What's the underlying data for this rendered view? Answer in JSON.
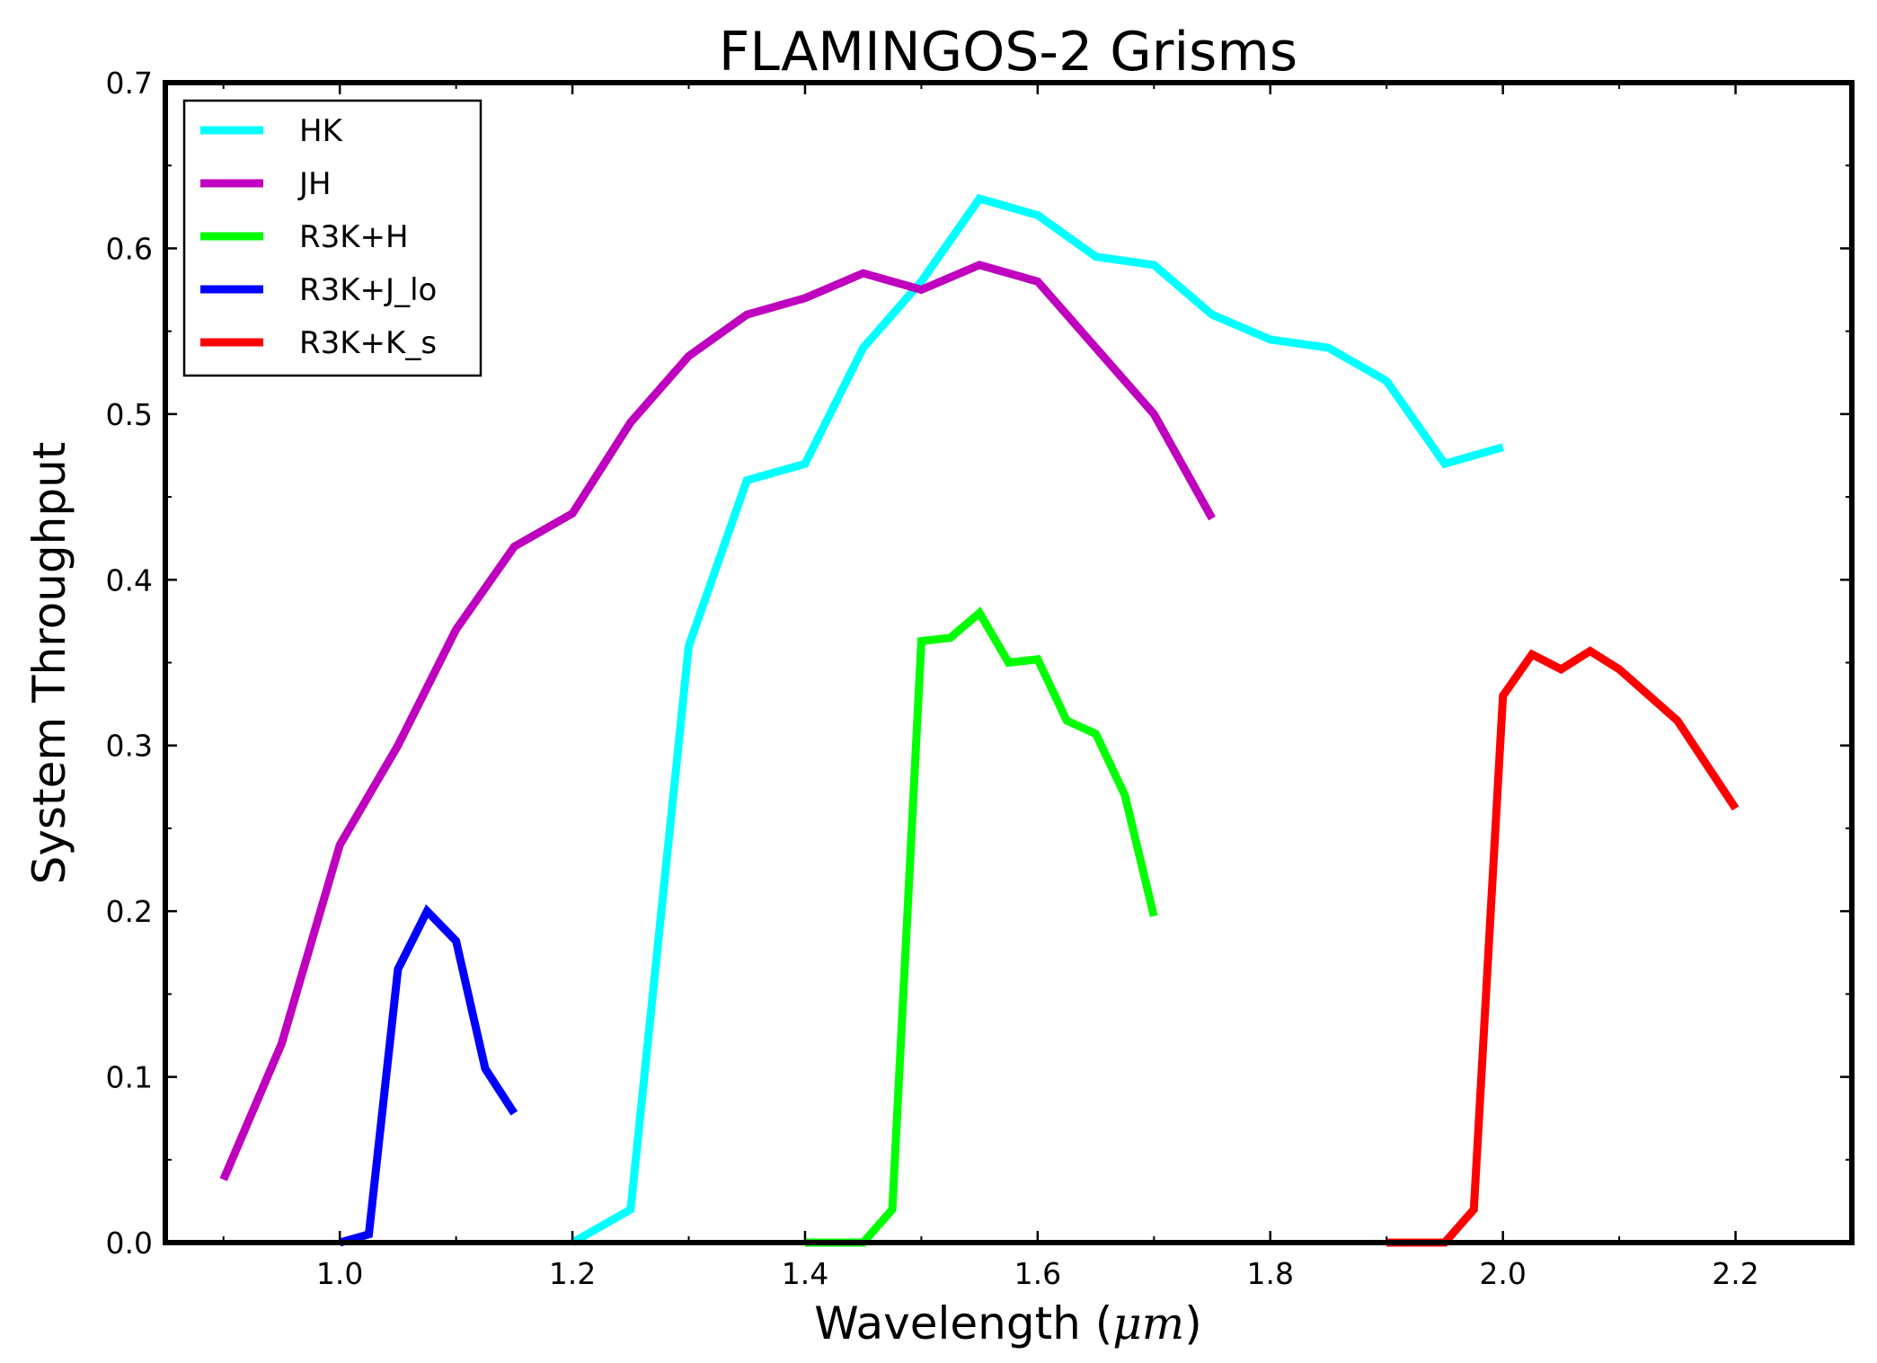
{
  "chart_data": {
    "type": "line",
    "title": "FLAMINGOS-2 Grisms",
    "xlabel_prefix": "Wavelength (",
    "xlabel_unit": "μm",
    "xlabel_suffix": ")",
    "ylabel": "System Throughput",
    "xlim": [
      0.85,
      2.3
    ],
    "ylim": [
      0.0,
      0.7
    ],
    "xticks": [
      1.0,
      1.2,
      1.4,
      1.6,
      1.8,
      2.0,
      2.2
    ],
    "xtick_labels": [
      "1.0",
      "1.2",
      "1.4",
      "1.6",
      "1.8",
      "2.0",
      "2.2"
    ],
    "yticks": [
      0.0,
      0.1,
      0.2,
      0.3,
      0.4,
      0.5,
      0.6,
      0.7
    ],
    "ytick_labels": [
      "0.0",
      "0.1",
      "0.2",
      "0.3",
      "0.4",
      "0.5",
      "0.6",
      "0.7"
    ],
    "grid": false,
    "legend_position": "top-left",
    "series": [
      {
        "name": "HK",
        "color": "#00ffff",
        "x": [
          1.2,
          1.25,
          1.3,
          1.35,
          1.4,
          1.45,
          1.5,
          1.55,
          1.6,
          1.65,
          1.7,
          1.75,
          1.8,
          1.85,
          1.9,
          1.95,
          2.0
        ],
        "y": [
          0.0,
          0.02,
          0.36,
          0.46,
          0.47,
          0.54,
          0.58,
          0.63,
          0.62,
          0.595,
          0.59,
          0.56,
          0.545,
          0.54,
          0.52,
          0.47,
          0.48
        ]
      },
      {
        "name": "JH",
        "color": "#bf00bf",
        "x": [
          0.9,
          0.95,
          1.0,
          1.05,
          1.1,
          1.15,
          1.2,
          1.25,
          1.3,
          1.35,
          1.4,
          1.45,
          1.5,
          1.55,
          1.6,
          1.65,
          1.7,
          1.75
        ],
        "y": [
          0.038,
          0.12,
          0.24,
          0.3,
          0.37,
          0.42,
          0.44,
          0.495,
          0.535,
          0.56,
          0.57,
          0.585,
          0.575,
          0.59,
          0.58,
          0.54,
          0.5,
          0.437
        ]
      },
      {
        "name": "R3K+H",
        "color": "#00ff00",
        "x": [
          1.4,
          1.45,
          1.475,
          1.5,
          1.525,
          1.55,
          1.575,
          1.6,
          1.625,
          1.65,
          1.675,
          1.7
        ],
        "y": [
          0.0,
          0.0,
          0.02,
          0.363,
          0.365,
          0.38,
          0.35,
          0.352,
          0.315,
          0.307,
          0.27,
          0.197
        ]
      },
      {
        "name": "R3K+J_lo",
        "color": "#0000ff",
        "x": [
          1.0,
          1.025,
          1.05,
          1.075,
          1.1,
          1.125,
          1.15
        ],
        "y": [
          0.0,
          0.005,
          0.165,
          0.2,
          0.182,
          0.105,
          0.078
        ]
      },
      {
        "name": "R3K+K_s",
        "color": "#ff0000",
        "x": [
          1.9,
          1.95,
          1.975,
          2.0,
          2.025,
          2.05,
          2.075,
          2.1,
          2.15,
          2.2
        ],
        "y": [
          0.0,
          0.0,
          0.02,
          0.33,
          0.355,
          0.346,
          0.357,
          0.346,
          0.315,
          0.262
        ]
      }
    ]
  }
}
